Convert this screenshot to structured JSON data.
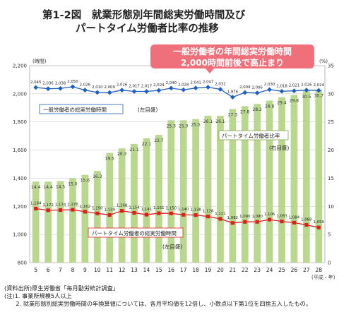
{
  "title": {
    "line1": "第1-2図　就業形態別年間総実労働時間及び",
    "line2": "パートタイム労働者比率の推移"
  },
  "callout": {
    "line1": "一般労働者の年間総実労働時間",
    "line2": "2,000時間前後で高止まり"
  },
  "colors": {
    "bar": "#b9d88e",
    "general_line": "#1f5fbf",
    "part_line": "#d9221f",
    "callout_bg": "#ef6f7a",
    "grid": "#cfcfcf"
  },
  "chart_data": {
    "type": "bar+line",
    "x": [
      "5",
      "6",
      "7",
      "8",
      "9",
      "10",
      "11",
      "12",
      "13",
      "14",
      "15",
      "16",
      "17",
      "18",
      "19",
      "20",
      "21",
      "22",
      "23",
      "24",
      "25",
      "26",
      "27",
      "28"
    ],
    "xlabel_unit": "(平成・年)",
    "y_left": {
      "label": "(時間)",
      "range": [
        800,
        2200
      ],
      "ticks": [
        800,
        1000,
        1200,
        1400,
        1600,
        1800,
        2000,
        2200
      ],
      "tick_labels": [
        "800",
        "1,000",
        "1,200",
        "1,400",
        "1,600",
        "1,800",
        "2,000",
        "2,200"
      ]
    },
    "y_right": {
      "label": "(%)",
      "range": [
        0,
        35
      ],
      "ticks": [
        0,
        5,
        10,
        15,
        20,
        25,
        30,
        35
      ],
      "tick_labels": [
        "0",
        "5",
        "10",
        "15",
        "20",
        "25",
        "30",
        "35"
      ]
    },
    "grid": true,
    "series": [
      {
        "name": "パートタイム労働者比率",
        "axis_note": "(右目盛)",
        "type": "bar",
        "values": [
          14.4,
          14.4,
          14.5,
          15.0,
          15.6,
          16.3,
          19.5,
          20.3,
          21.1,
          22.1,
          22.7,
          25.3,
          25.3,
          25.5,
          26.1,
          26.1,
          27.3,
          27.8,
          28.2,
          28.8,
          29.4,
          29.8,
          30.5,
          30.7
        ],
        "labels": [
          "14.4",
          "14.4",
          "14.5",
          "15.0",
          "15.6",
          "16.3",
          "19.5",
          "20.3",
          "21.1",
          "22.1",
          "22.7",
          "25.3",
          "25.3",
          "25.5",
          "26.1",
          "26.1",
          "27.3",
          "27.8",
          "28.2",
          "28.8",
          "29.4",
          "29.8",
          "30.5",
          "30.7"
        ]
      },
      {
        "name": "一般労働者の総実労働時間",
        "axis_note": "(左目盛)",
        "type": "line",
        "values": [
          2045,
          2036,
          2038,
          2050,
          2026,
          2010,
          2009,
          2026,
          2017,
          2017,
          2024,
          2040,
          2028,
          2041,
          2047,
          2032,
          1976,
          2009,
          2006,
          2030,
          2018,
          2021,
          2026,
          2024
        ],
        "labels": [
          "2,045",
          "2,036",
          "2,038",
          "2,050",
          "2,026",
          "2,010",
          "2,009",
          "2,026",
          "2,017",
          "2,017",
          "2,024",
          "2,040",
          "2,028",
          "2,041",
          "2,047",
          "2,032",
          "1,976",
          "2,009",
          "2,006",
          "2,030",
          "2,018",
          "2,021",
          "2,026",
          "2,024"
        ]
      },
      {
        "name": "パートタイム労働者の総実労働時間",
        "axis_note": "(左目盛)",
        "type": "line",
        "values": [
          1184,
          1172,
          1174,
          1176,
          1162,
          1150,
          1139,
          1168,
          1154,
          1141,
          1151,
          1150,
          1140,
          1138,
          1128,
          1111,
          1082,
          1090,
          1090,
          1106,
          1093,
          1084,
          1068,
          1050
        ],
        "labels": [
          "1,184",
          "1,172",
          "1,174",
          "1,176",
          "1,162",
          "1,150",
          "1,139",
          "1,168",
          "1,154",
          "1,141",
          "1,151",
          "1,150",
          "1,140",
          "1,138",
          "1,128",
          "1,111",
          "1,082",
          "1,090",
          "1,090",
          "1,106",
          "1,093",
          "1,084",
          "1,068",
          "1,050"
        ]
      }
    ]
  },
  "footnotes": [
    "(資料出所)厚生労働省「毎月勤労統計調査」",
    "(注)1. 事業所規模5人以上",
    "　　2. 就業形態別総実労働時間の年換算値については、各月平均値を12倍し、小数点以下第1位を四捨五入したもの。"
  ]
}
